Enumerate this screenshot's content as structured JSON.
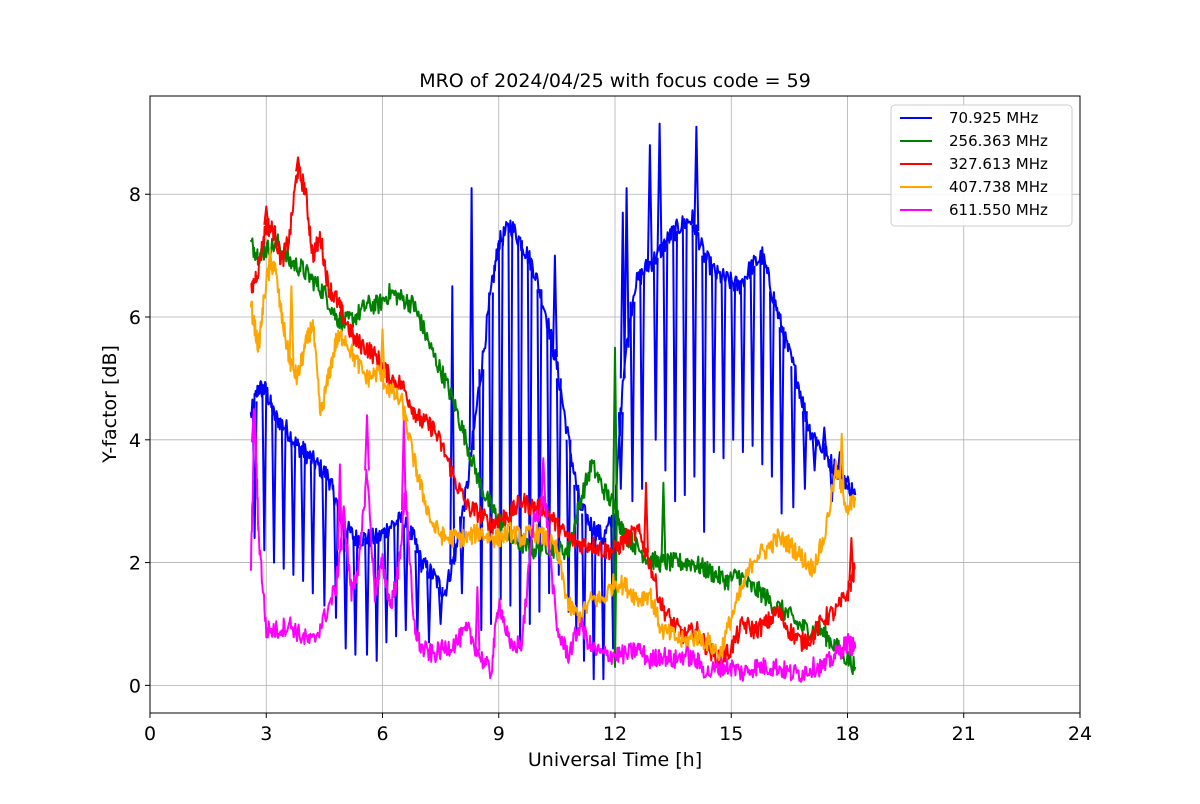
{
  "chart_data": {
    "type": "line",
    "title": "MRO of 2024/04/25 with focus code = 59",
    "xlabel": "Universal Time [h]",
    "ylabel": "Y-factor [dB]",
    "xlim": [
      0,
      24
    ],
    "ylim": [
      -0.45,
      9.6
    ],
    "xticks": [
      0,
      3,
      6,
      9,
      12,
      15,
      18,
      21,
      24
    ],
    "yticks": [
      0,
      2,
      4,
      6,
      8
    ],
    "grid": true,
    "legend_position": "top-right",
    "series": [
      {
        "name": " 70.925 MHz",
        "color": "#0000ff",
        "x": [
          2.6,
          2.8,
          3.0,
          3.2,
          3.5,
          3.8,
          4.0,
          4.3,
          4.6,
          4.8,
          5.0,
          5.3,
          5.6,
          5.9,
          6.2,
          6.5,
          6.8,
          7.0,
          7.3,
          7.6,
          7.9,
          8.2,
          8.5,
          8.8,
          9.0,
          9.3,
          9.6,
          9.9,
          10.2,
          10.5,
          10.8,
          11.1,
          11.4,
          11.7,
          12.0,
          12.2,
          12.5,
          12.8,
          13.1,
          13.4,
          13.7,
          14.0,
          14.3,
          14.6,
          14.9,
          15.2,
          15.5,
          15.8,
          16.1,
          16.4,
          16.7,
          17.0,
          17.3,
          17.6,
          17.9,
          18.2
        ],
        "y": [
          4.4,
          4.85,
          4.8,
          4.4,
          4.2,
          3.9,
          3.8,
          3.6,
          3.4,
          3.0,
          2.6,
          2.4,
          2.4,
          2.4,
          2.6,
          2.7,
          2.4,
          2.0,
          1.8,
          1.5,
          2.2,
          3.3,
          4.9,
          6.4,
          7.2,
          7.5,
          7.2,
          6.8,
          6.1,
          5.2,
          4.0,
          2.9,
          2.6,
          2.4,
          2.8,
          5.0,
          6.5,
          6.8,
          7.0,
          7.3,
          7.5,
          7.6,
          7.0,
          6.7,
          6.6,
          6.5,
          6.8,
          7.0,
          6.3,
          5.6,
          5.0,
          4.2,
          3.9,
          3.6,
          3.4,
          3.1
        ],
        "spikes": [
          {
            "x": 2.7,
            "y": 2.4
          },
          {
            "x": 2.95,
            "y": 2.2
          },
          {
            "x": 3.2,
            "y": 2.0
          },
          {
            "x": 3.45,
            "y": 1.9
          },
          {
            "x": 3.7,
            "y": 1.8
          },
          {
            "x": 3.95,
            "y": 1.7
          },
          {
            "x": 4.2,
            "y": 1.5
          },
          {
            "x": 4.5,
            "y": 1.3
          },
          {
            "x": 4.8,
            "y": 1.1
          },
          {
            "x": 5.05,
            "y": 0.6
          },
          {
            "x": 5.3,
            "y": 0.5
          },
          {
            "x": 5.6,
            "y": 0.5
          },
          {
            "x": 5.85,
            "y": 0.4
          },
          {
            "x": 6.1,
            "y": 0.7
          },
          {
            "x": 6.35,
            "y": 0.8
          },
          {
            "x": 6.6,
            "y": 0.9
          },
          {
            "x": 6.9,
            "y": 0.8
          },
          {
            "x": 7.2,
            "y": 0.7
          },
          {
            "x": 7.5,
            "y": 1.0
          },
          {
            "x": 7.8,
            "y": 6.5
          },
          {
            "x": 8.05,
            "y": 1.5
          },
          {
            "x": 8.3,
            "y": 8.1
          },
          {
            "x": 8.55,
            "y": 0.9
          },
          {
            "x": 8.8,
            "y": 1.0
          },
          {
            "x": 9.05,
            "y": 1.4
          },
          {
            "x": 9.3,
            "y": 1.3
          },
          {
            "x": 9.55,
            "y": 0.6
          },
          {
            "x": 9.8,
            "y": 1.0
          },
          {
            "x": 10.05,
            "y": 1.2
          },
          {
            "x": 10.3,
            "y": 1.5
          },
          {
            "x": 10.45,
            "y": 7.0
          },
          {
            "x": 10.55,
            "y": 1.8
          },
          {
            "x": 10.8,
            "y": 1.2
          },
          {
            "x": 11.0,
            "y": 0.8
          },
          {
            "x": 11.2,
            "y": 0.4
          },
          {
            "x": 11.45,
            "y": 0.1
          },
          {
            "x": 11.7,
            "y": 0.1
          },
          {
            "x": 11.95,
            "y": 0.6
          },
          {
            "x": 12.15,
            "y": 3.2
          },
          {
            "x": 12.2,
            "y": 7.7
          },
          {
            "x": 12.3,
            "y": 8.1
          },
          {
            "x": 12.45,
            "y": 3.0
          },
          {
            "x": 12.7,
            "y": 3.2
          },
          {
            "x": 12.9,
            "y": 8.8
          },
          {
            "x": 13.05,
            "y": 4.0
          },
          {
            "x": 13.15,
            "y": 9.15
          },
          {
            "x": 13.3,
            "y": 3.5
          },
          {
            "x": 13.55,
            "y": 3.0
          },
          {
            "x": 13.8,
            "y": 3.1
          },
          {
            "x": 14.05,
            "y": 3.4
          },
          {
            "x": 14.1,
            "y": 9.1
          },
          {
            "x": 14.3,
            "y": 2.5
          },
          {
            "x": 14.55,
            "y": 3.8
          },
          {
            "x": 14.8,
            "y": 3.7
          },
          {
            "x": 15.05,
            "y": 4.0
          },
          {
            "x": 15.3,
            "y": 3.8
          },
          {
            "x": 15.55,
            "y": 3.9
          },
          {
            "x": 15.8,
            "y": 3.6
          },
          {
            "x": 16.05,
            "y": 3.4
          },
          {
            "x": 16.3,
            "y": 2.8
          },
          {
            "x": 16.6,
            "y": 2.9
          },
          {
            "x": 16.9,
            "y": 3.2
          },
          {
            "x": 17.15,
            "y": 3.5
          },
          {
            "x": 17.4,
            "y": 4.2
          },
          {
            "x": 17.6,
            "y": 3.0
          },
          {
            "x": 17.8,
            "y": 3.8
          },
          {
            "x": 18.0,
            "y": 3.2
          }
        ]
      },
      {
        "name": "256.363 MHz",
        "color": "#008000",
        "x": [
          2.6,
          2.8,
          3.0,
          3.3,
          3.6,
          3.9,
          4.2,
          4.5,
          4.8,
          5.0,
          5.3,
          5.6,
          5.9,
          6.2,
          6.5,
          6.8,
          7.0,
          7.3,
          7.6,
          7.9,
          8.2,
          8.5,
          8.8,
          9.0,
          9.3,
          9.6,
          9.9,
          10.2,
          10.5,
          10.8,
          11.1,
          11.4,
          11.7,
          12.0,
          12.2,
          12.5,
          12.8,
          13.1,
          13.4,
          13.7,
          14.0,
          14.3,
          14.6,
          14.9,
          15.2,
          15.5,
          15.8,
          16.1,
          16.4,
          16.7,
          17.0,
          17.3,
          17.6,
          17.9,
          18.2
        ],
        "y": [
          7.2,
          7.0,
          7.1,
          7.2,
          6.9,
          6.8,
          6.6,
          6.4,
          6.0,
          5.9,
          6.0,
          6.2,
          6.2,
          6.4,
          6.3,
          6.2,
          5.9,
          5.4,
          5.0,
          4.5,
          3.9,
          3.3,
          2.9,
          2.7,
          2.4,
          2.3,
          2.2,
          2.3,
          2.2,
          2.2,
          3.0,
          3.6,
          3.2,
          2.9,
          2.5,
          2.3,
          2.1,
          2.0,
          2.0,
          2.0,
          2.0,
          1.9,
          1.8,
          1.7,
          1.8,
          1.6,
          1.5,
          1.3,
          1.2,
          1.0,
          0.9,
          0.9,
          0.7,
          0.5,
          0.3
        ],
        "spikes": [
          {
            "x": 12.0,
            "y": 5.5
          },
          {
            "x": 12.0,
            "y": 0.3
          },
          {
            "x": 13.25,
            "y": 3.3
          }
        ]
      },
      {
        "name": "327.613 MHz",
        "color": "#ff0000",
        "x": [
          2.6,
          2.8,
          3.0,
          3.2,
          3.4,
          3.6,
          3.8,
          4.0,
          4.2,
          4.4,
          4.6,
          4.8,
          5.0,
          5.3,
          5.6,
          5.9,
          6.2,
          6.5,
          6.8,
          7.0,
          7.3,
          7.6,
          7.9,
          8.2,
          8.5,
          8.8,
          9.0,
          9.3,
          9.6,
          9.9,
          10.2,
          10.5,
          10.8,
          11.1,
          11.4,
          11.7,
          12.0,
          12.3,
          12.6,
          12.9,
          13.2,
          13.5,
          13.8,
          14.1,
          14.4,
          14.7,
          15.0,
          15.3,
          15.6,
          15.9,
          16.2,
          16.5,
          16.8,
          17.1,
          17.4,
          17.7,
          18.0,
          18.2
        ],
        "y": [
          6.4,
          6.8,
          7.5,
          7.4,
          6.9,
          7.3,
          8.4,
          8.1,
          7.0,
          7.3,
          6.5,
          6.3,
          6.0,
          5.6,
          5.5,
          5.3,
          5.0,
          4.9,
          4.5,
          4.3,
          4.2,
          3.8,
          3.3,
          2.9,
          2.8,
          2.6,
          2.7,
          2.8,
          3.0,
          2.9,
          2.9,
          2.6,
          2.4,
          2.3,
          2.3,
          2.2,
          2.2,
          2.4,
          2.5,
          2.0,
          1.3,
          1.0,
          0.8,
          0.9,
          0.6,
          0.4,
          0.6,
          1.0,
          0.9,
          1.0,
          1.2,
          0.9,
          0.7,
          0.8,
          1.1,
          1.2,
          1.5,
          1.9
        ],
        "spikes": [
          {
            "x": 3.0,
            "y": 7.8
          },
          {
            "x": 3.82,
            "y": 8.6
          },
          {
            "x": 7.3,
            "y": 4.3
          },
          {
            "x": 12.8,
            "y": 3.3
          },
          {
            "x": 18.1,
            "y": 2.4
          }
        ]
      },
      {
        "name": "407.738 MHz",
        "color": "#ffa500",
        "x": [
          2.6,
          2.8,
          3.0,
          3.2,
          3.4,
          3.6,
          3.8,
          4.0,
          4.2,
          4.4,
          4.6,
          4.8,
          5.0,
          5.3,
          5.6,
          5.9,
          6.2,
          6.5,
          6.8,
          7.0,
          7.3,
          7.6,
          7.9,
          8.2,
          8.5,
          8.8,
          9.0,
          9.3,
          9.6,
          9.9,
          10.2,
          10.5,
          10.8,
          11.1,
          11.4,
          11.7,
          12.0,
          12.3,
          12.6,
          12.9,
          13.2,
          13.5,
          13.8,
          14.1,
          14.4,
          14.7,
          15.0,
          15.3,
          15.6,
          15.9,
          16.2,
          16.5,
          16.8,
          17.1,
          17.4,
          17.7,
          18.0,
          18.2
        ],
        "y": [
          6.2,
          5.5,
          6.6,
          6.9,
          6.0,
          5.3,
          5.0,
          5.5,
          5.9,
          4.4,
          5.0,
          5.6,
          5.7,
          5.3,
          5.0,
          5.1,
          4.8,
          4.6,
          3.7,
          3.2,
          2.6,
          2.4,
          2.4,
          2.4,
          2.5,
          2.4,
          2.4,
          2.5,
          2.4,
          2.5,
          2.4,
          2.2,
          1.3,
          1.1,
          1.4,
          1.4,
          1.7,
          1.6,
          1.4,
          1.5,
          0.9,
          0.8,
          0.7,
          0.8,
          0.7,
          0.5,
          1.1,
          1.6,
          2.1,
          2.2,
          2.4,
          2.3,
          2.1,
          1.9,
          2.4,
          3.5,
          2.9,
          3.0
        ],
        "spikes": [
          {
            "x": 3.1,
            "y": 7.1
          },
          {
            "x": 3.65,
            "y": 6.5
          },
          {
            "x": 6.0,
            "y": 5.8
          },
          {
            "x": 6.6,
            "y": 4.4
          },
          {
            "x": 17.85,
            "y": 4.1
          }
        ]
      },
      {
        "name": "611.550 MHz",
        "color": "#ff00ff",
        "x": [
          2.6,
          2.7,
          2.8,
          3.0,
          3.3,
          3.6,
          3.9,
          4.2,
          4.5,
          4.8,
          5.0,
          5.2,
          5.4,
          5.6,
          5.8,
          6.0,
          6.2,
          6.4,
          6.6,
          6.8,
          7.0,
          7.3,
          7.6,
          7.9,
          8.2,
          8.5,
          8.8,
          9.0,
          9.3,
          9.6,
          9.9,
          10.2,
          10.5,
          10.8,
          11.1,
          11.4,
          11.7,
          12.0,
          12.3,
          12.6,
          12.9,
          13.2,
          13.5,
          13.8,
          14.1,
          14.4,
          14.7,
          15.0,
          15.3,
          15.6,
          15.9,
          16.2,
          16.5,
          16.8,
          17.1,
          17.4,
          17.7,
          18.0,
          18.2
        ],
        "y": [
          1.8,
          4.5,
          2.5,
          0.9,
          0.9,
          1.0,
          0.8,
          0.7,
          1.1,
          1.6,
          2.8,
          1.5,
          2.0,
          3.5,
          1.5,
          2.0,
          1.3,
          1.8,
          3.2,
          1.0,
          0.6,
          0.5,
          0.6,
          0.7,
          0.9,
          0.5,
          0.2,
          1.4,
          0.6,
          0.7,
          2.7,
          3.0,
          0.9,
          0.5,
          1.0,
          0.6,
          0.5,
          0.5,
          0.5,
          0.6,
          0.4,
          0.5,
          0.4,
          0.5,
          0.4,
          0.2,
          0.3,
          0.3,
          0.2,
          0.3,
          0.3,
          0.3,
          0.2,
          0.2,
          0.3,
          0.3,
          0.5,
          0.7,
          0.6
        ],
        "spikes": [
          {
            "x": 2.68,
            "y": 4.5
          },
          {
            "x": 4.9,
            "y": 3.6
          },
          {
            "x": 5.6,
            "y": 4.4
          },
          {
            "x": 6.55,
            "y": 4.3
          },
          {
            "x": 8.45,
            "y": 1.6
          },
          {
            "x": 10.15,
            "y": 3.7
          }
        ]
      }
    ]
  }
}
